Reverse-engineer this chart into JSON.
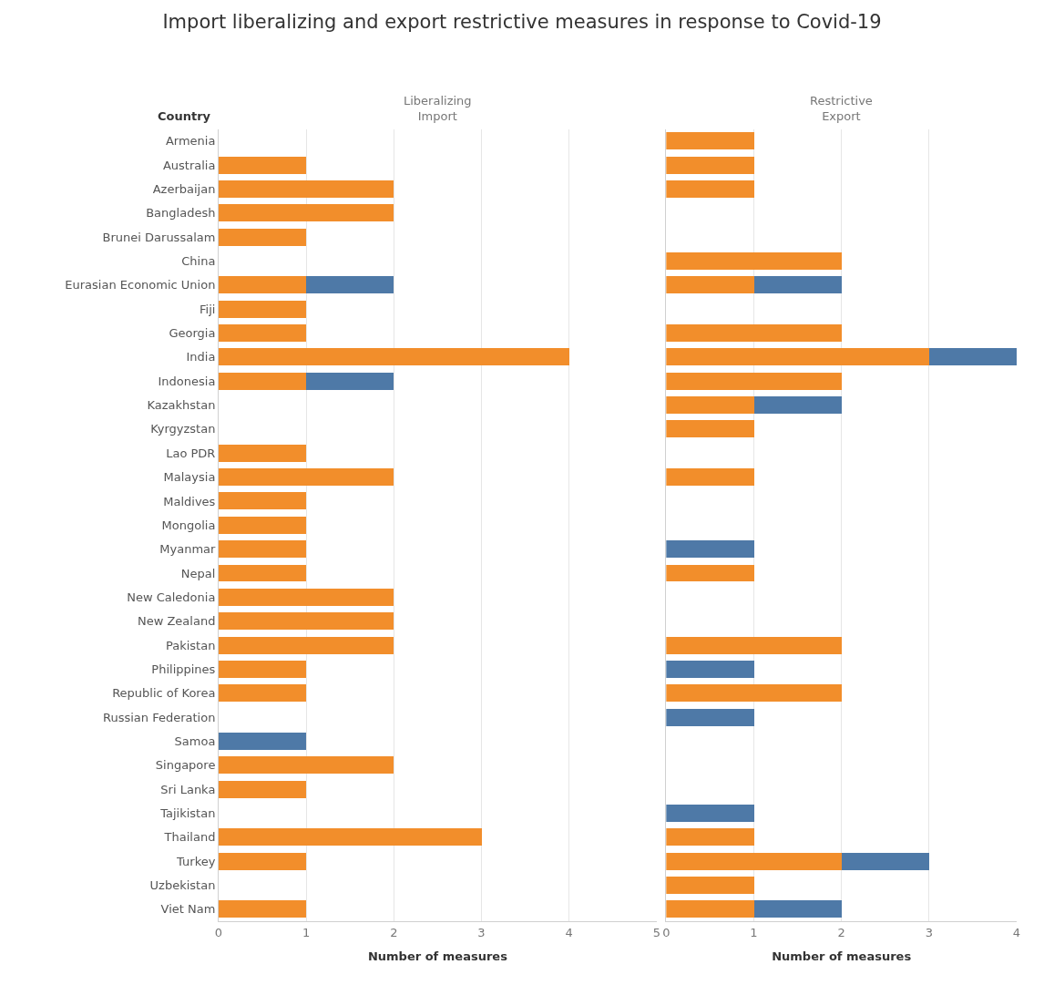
{
  "chart_data": [
    {
      "type": "bar",
      "orientation": "horizontal",
      "stacked": true,
      "title": "Import liberalizing and export restrictive measures in response to Covid-19",
      "subtitle": "Liberalizing\nImport",
      "ylabel": "Country",
      "xlabel": "Number of measures",
      "categories": [
        "Armenia",
        "Australia",
        "Azerbaijan",
        "Bangladesh",
        "Brunei Darussalam",
        "China",
        "Eurasian Economic Union",
        "Fiji",
        "Georgia",
        "India",
        "Indonesia",
        "Kazakhstan",
        "Kyrgyzstan",
        "Lao PDR",
        "Malaysia",
        "Maldives",
        "Mongolia",
        "Myanmar",
        "Nepal",
        "New Caledonia",
        "New Zealand",
        "Pakistan",
        "Philippines",
        "Republic of Korea",
        "Russian Federation",
        "Samoa",
        "Singapore",
        "Sri Lanka",
        "Tajikistan",
        "Thailand",
        "Turkey",
        "Uzbekistan",
        "Viet Nam"
      ],
      "series": [
        {
          "color": "#f28e2b",
          "values": [
            null,
            1,
            2,
            2,
            1,
            null,
            1,
            1,
            1,
            4,
            1,
            null,
            null,
            1,
            2,
            1,
            1,
            1,
            1,
            2,
            2,
            2,
            1,
            1,
            null,
            null,
            2,
            1,
            null,
            3,
            1,
            null,
            1
          ]
        },
        {
          "color": "#4e79a7",
          "values": [
            null,
            null,
            null,
            null,
            null,
            null,
            1,
            null,
            null,
            null,
            1,
            null,
            null,
            null,
            null,
            null,
            null,
            null,
            null,
            null,
            null,
            null,
            null,
            null,
            null,
            1,
            null,
            null,
            null,
            null,
            null,
            null,
            null
          ]
        }
      ],
      "xlim": [
        0,
        5
      ],
      "xticks": [
        0,
        1,
        2,
        3,
        4,
        5
      ],
      "grid": "x"
    },
    {
      "type": "bar",
      "orientation": "horizontal",
      "stacked": true,
      "subtitle": "Restrictive\nExport",
      "xlabel": "Number of measures",
      "categories": [
        "Armenia",
        "Australia",
        "Azerbaijan",
        "Bangladesh",
        "Brunei Darussalam",
        "China",
        "Eurasian Economic Union",
        "Fiji",
        "Georgia",
        "India",
        "Indonesia",
        "Kazakhstan",
        "Kyrgyzstan",
        "Lao PDR",
        "Malaysia",
        "Maldives",
        "Mongolia",
        "Myanmar",
        "Nepal",
        "New Caledonia",
        "New Zealand",
        "Pakistan",
        "Philippines",
        "Republic of Korea",
        "Russian Federation",
        "Samoa",
        "Singapore",
        "Sri Lanka",
        "Tajikistan",
        "Thailand",
        "Turkey",
        "Uzbekistan",
        "Viet Nam"
      ],
      "series": [
        {
          "color": "#f28e2b",
          "values": [
            1,
            1,
            1,
            null,
            null,
            2,
            1,
            null,
            2,
            3,
            2,
            1,
            1,
            null,
            1,
            null,
            null,
            null,
            1,
            null,
            null,
            2,
            null,
            2,
            null,
            null,
            null,
            null,
            null,
            1,
            2,
            1,
            1
          ]
        },
        {
          "color": "#4e79a7",
          "values": [
            null,
            null,
            null,
            null,
            null,
            null,
            1,
            null,
            null,
            1,
            null,
            1,
            null,
            null,
            null,
            null,
            null,
            1,
            null,
            null,
            null,
            null,
            1,
            null,
            1,
            null,
            null,
            null,
            1,
            null,
            1,
            null,
            1
          ]
        }
      ],
      "xlim": [
        0,
        4
      ],
      "xticks": [
        0,
        1,
        2,
        3,
        4
      ],
      "grid": "x",
      "tick_labels": "x"
    }
  ]
}
